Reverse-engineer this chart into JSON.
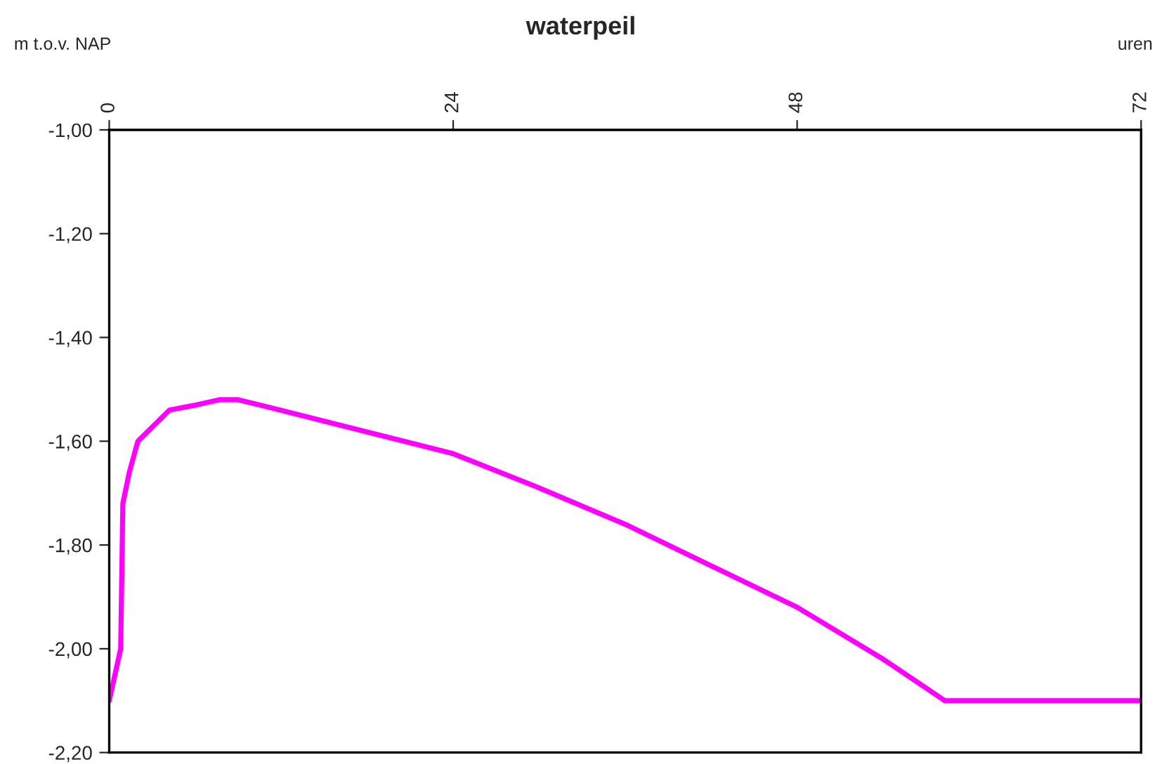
{
  "chart_data": {
    "type": "line",
    "title": "waterpeil",
    "xlabel": "uren",
    "ylabel": "m t.o.v. NAP",
    "series": [
      {
        "color": "#ff00ff",
        "x": [
          0,
          0.8,
          0.95,
          1.4,
          2.0,
          4.2,
          6.1,
          7.7,
          9.0,
          11.2,
          24,
          30,
          36,
          42,
          48,
          54,
          58.3,
          72
        ],
        "values": [
          -2.1,
          -2.0,
          -1.72,
          -1.66,
          -1.6,
          -1.54,
          -1.53,
          -1.52,
          -1.52,
          -1.535,
          -1.624,
          -1.69,
          -1.76,
          -1.84,
          -1.92,
          -2.02,
          -2.1,
          -2.1
        ]
      }
    ],
    "xlim": [
      0,
      72
    ],
    "xticks": [
      0,
      24,
      48,
      72
    ],
    "ylim": [
      -2.2,
      -1.0
    ],
    "yticks": [
      {
        "value": -2.2,
        "label": "-2,20"
      },
      {
        "value": -2.0,
        "label": "-2,00"
      },
      {
        "value": -1.8,
        "label": "-1,80"
      },
      {
        "value": -1.6,
        "label": "-1,60"
      },
      {
        "value": -1.4,
        "label": "-1,40"
      },
      {
        "value": -1.2,
        "label": "-1,20"
      },
      {
        "value": -1.0,
        "label": "-1,00"
      }
    ],
    "grid": false,
    "marker": "none",
    "line_style": "solid"
  }
}
